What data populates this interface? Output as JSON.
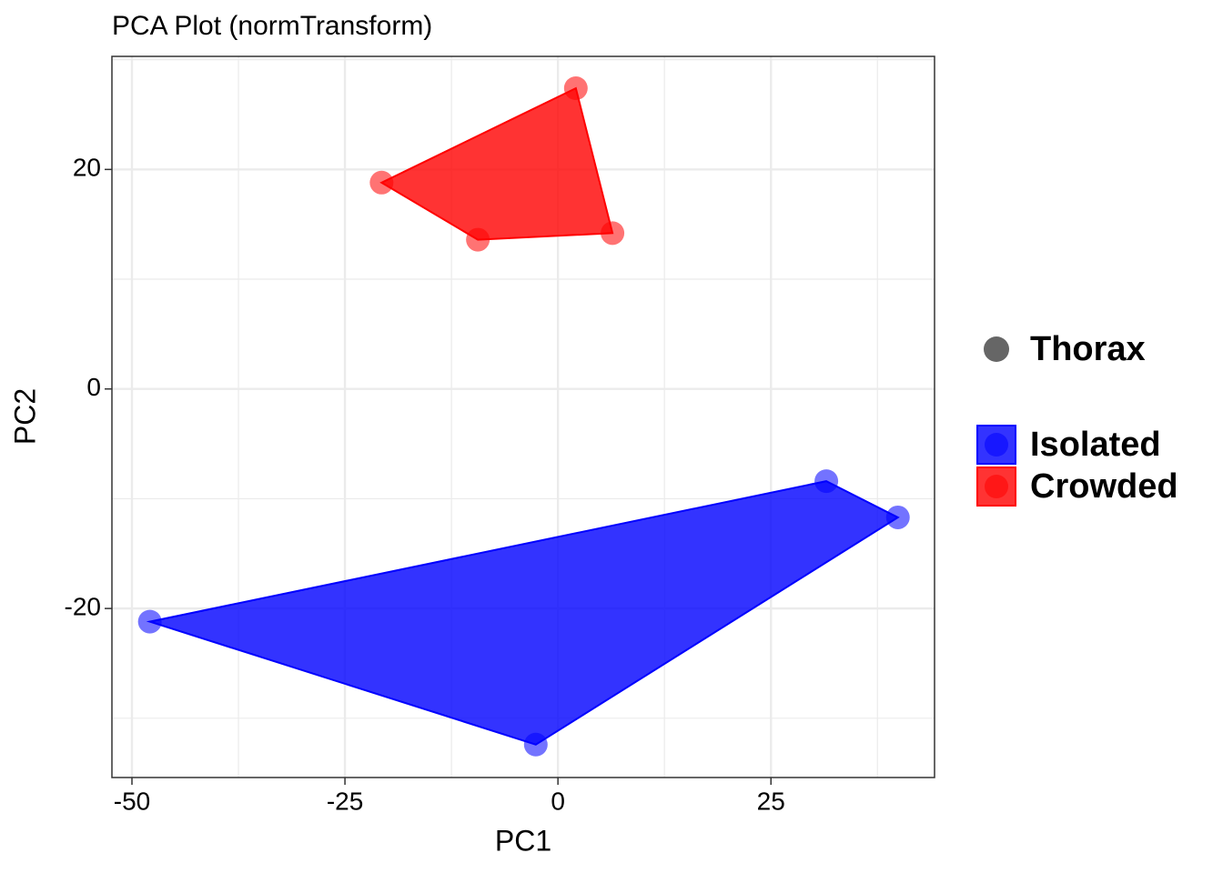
{
  "chart_data": {
    "type": "scatter",
    "title": "PCA Plot (normTransform)",
    "x_label": "PC1",
    "y_label": "PC2",
    "xlim": [
      -52.35,
      44.2
    ],
    "ylim": [
      -35.4,
      30.3
    ],
    "xticks": [
      -50,
      -25,
      0,
      25
    ],
    "yticks": [
      -20,
      0,
      20
    ],
    "grid": true,
    "hull": true,
    "shape_label": "Thorax",
    "shape_color": "#666666",
    "legend": "right",
    "series": [
      {
        "name": "Isolated",
        "color": "#0000ff",
        "x": [
          31.5,
          39.9,
          -2.6,
          -47.9
        ],
        "values": [
          -8.4,
          -11.7,
          -32.4,
          -21.2
        ]
      },
      {
        "name": "Crowded",
        "color": "#ff0000",
        "x": [
          2.1,
          6.4,
          -9.4,
          -20.7
        ],
        "values": [
          27.4,
          14.2,
          13.6,
          18.8
        ]
      }
    ]
  }
}
